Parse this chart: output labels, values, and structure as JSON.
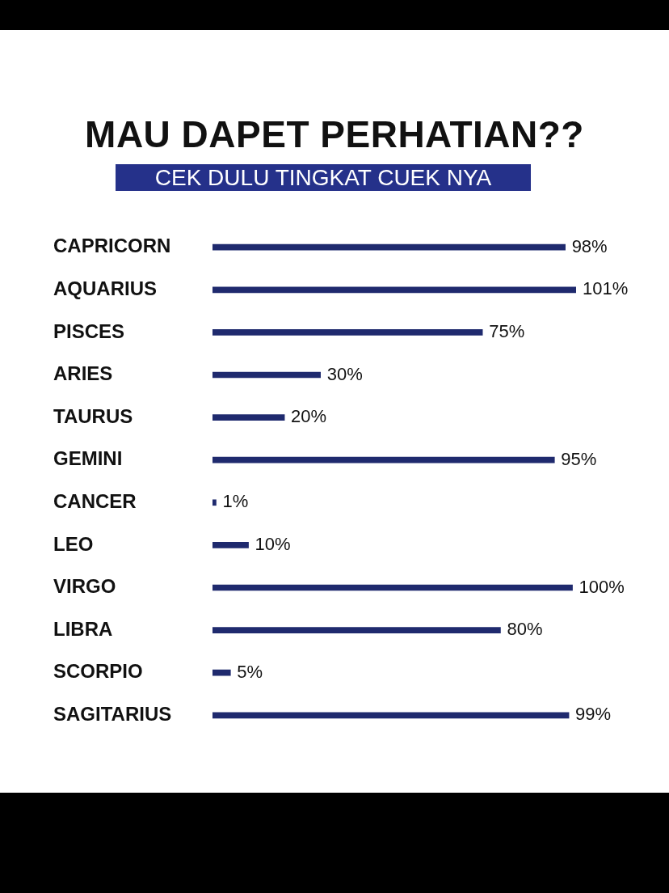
{
  "chart_data": {
    "type": "bar",
    "orientation": "horizontal",
    "title": "MAU DAPET PERHATIAN??",
    "subtitle": "CEK DULU TINGKAT CUEK NYA",
    "categories": [
      "CAPRICORN",
      "AQUARIUS",
      "PISCES",
      "ARIES",
      "TAURUS",
      "GEMINI",
      "CANCER",
      "LEO",
      "VIRGO",
      "LIBRA",
      "SCORPIO",
      "SAGITARIUS"
    ],
    "values": [
      98,
      101,
      75,
      30,
      20,
      95,
      1,
      10,
      100,
      80,
      5,
      99
    ],
    "value_labels": [
      "98%",
      "101%",
      "75%",
      "30%",
      "20%",
      "95%",
      "1%",
      "10%",
      "100%",
      "80%",
      "5%",
      "99%"
    ],
    "color": "#1f2a6e",
    "grid": false,
    "legend": false
  }
}
